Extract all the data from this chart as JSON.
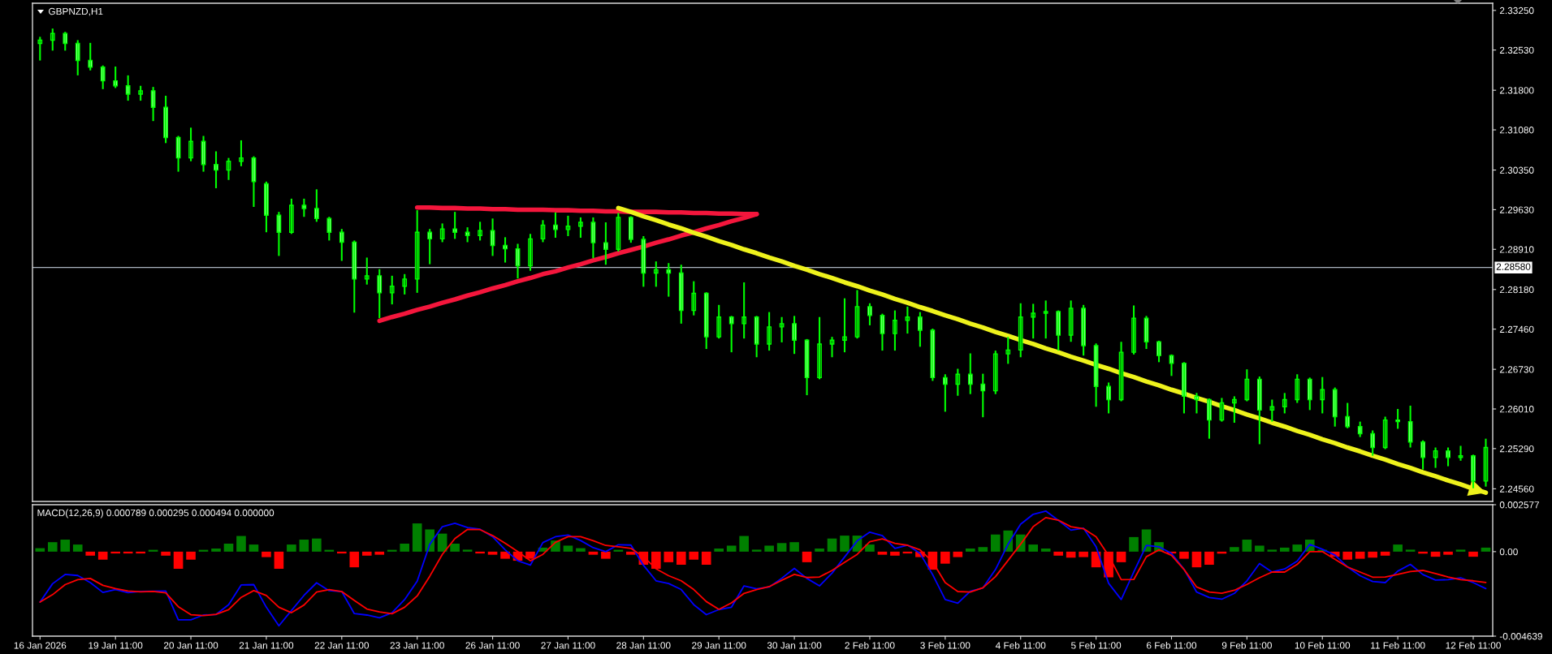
{
  "chart_data": [
    {
      "type": "candlestick",
      "title": "GBPNZD,H1",
      "color": "#00ff00",
      "ohlc": [
        [
          2.3265,
          2.3277,
          2.3234,
          2.3271
        ],
        [
          2.3271,
          2.3292,
          2.3252,
          2.3283
        ],
        [
          2.3283,
          2.3286,
          2.3252,
          2.3265
        ],
        [
          2.3265,
          2.3271,
          2.3207,
          2.3234
        ],
        [
          2.3234,
          2.3266,
          2.3216,
          2.3222
        ],
        [
          2.3222,
          2.3225,
          2.3182,
          2.3197
        ],
        [
          2.3197,
          2.3223,
          2.3184,
          2.3188
        ],
        [
          2.3188,
          2.3207,
          2.3161,
          2.3173
        ],
        [
          2.3173,
          2.3188,
          2.3161,
          2.3179
        ],
        [
          2.3179,
          2.3186,
          2.3124,
          2.3149
        ],
        [
          2.3149,
          2.317,
          2.3084,
          2.3094
        ],
        [
          2.3094,
          2.3097,
          2.3032,
          2.3057
        ],
        [
          2.3057,
          2.3112,
          2.3051,
          2.3087
        ],
        [
          2.3087,
          2.3097,
          2.3032,
          2.3045
        ],
        [
          2.3045,
          2.3069,
          2.3002,
          2.3035
        ],
        [
          2.3035,
          2.3057,
          2.3017,
          2.3051
        ],
        [
          2.3051,
          2.3089,
          2.3042,
          2.3057
        ],
        [
          2.3057,
          2.306,
          2.2968,
          2.3014
        ],
        [
          2.301,
          2.3014,
          2.2922,
          2.2953
        ],
        [
          2.2953,
          2.2959,
          2.2879,
          2.2922
        ],
        [
          2.2922,
          2.2983,
          2.2919,
          2.2971
        ],
        [
          2.2971,
          2.2983,
          2.295,
          2.2965
        ],
        [
          2.2965,
          2.3,
          2.2941,
          2.2947
        ],
        [
          2.2947,
          2.295,
          2.2907,
          2.2922
        ],
        [
          2.2922,
          2.2928,
          2.287,
          2.2904
        ],
        [
          2.2904,
          2.2907,
          2.2776,
          2.2837
        ],
        [
          2.2837,
          2.2876,
          2.2827,
          2.2843
        ],
        [
          2.2843,
          2.2855,
          2.2766,
          2.2812
        ],
        [
          2.2812,
          2.2843,
          2.2791,
          2.2824
        ],
        [
          2.2824,
          2.2846,
          2.2809,
          2.2837
        ],
        [
          2.2837,
          2.2962,
          2.2812,
          2.2922
        ],
        [
          2.2922,
          2.2928,
          2.2864,
          2.291
        ],
        [
          2.291,
          2.2938,
          2.2904,
          2.2928
        ],
        [
          2.2928,
          2.2959,
          2.291,
          2.2922
        ],
        [
          2.2922,
          2.2931,
          2.2904,
          2.2916
        ],
        [
          2.2916,
          2.2941,
          2.2907,
          2.2925
        ],
        [
          2.2925,
          2.2947,
          2.2879,
          2.2898
        ],
        [
          2.2898,
          2.2913,
          2.2867,
          2.2892
        ],
        [
          2.2892,
          2.2901,
          2.2838,
          2.2861
        ],
        [
          2.2861,
          2.2919,
          2.2852,
          2.291
        ],
        [
          2.291,
          2.2944,
          2.2904,
          2.2935
        ],
        [
          2.2935,
          2.2958,
          2.2912,
          2.2927
        ],
        [
          2.2927,
          2.2952,
          2.2915,
          2.2933
        ],
        [
          2.2933,
          2.2949,
          2.2912,
          2.294
        ],
        [
          2.294,
          2.2949,
          2.2875,
          2.2903
        ],
        [
          2.2903,
          2.294,
          2.2863,
          2.2891
        ],
        [
          2.2891,
          2.2957,
          2.2887,
          2.2949
        ],
        [
          2.2949,
          2.2951,
          2.2903,
          2.2909
        ],
        [
          2.2909,
          2.2915,
          2.2823,
          2.2848
        ],
        [
          2.2848,
          2.2869,
          2.2823,
          2.2854
        ],
        [
          2.2854,
          2.2866,
          2.2805,
          2.2848
        ],
        [
          2.2848,
          2.2863,
          2.2756,
          2.278
        ],
        [
          2.278,
          2.2833,
          2.2771,
          2.2811
        ],
        [
          2.2811,
          2.2813,
          2.271,
          2.2732
        ],
        [
          2.2732,
          2.279,
          2.2729,
          2.2768
        ],
        [
          2.2768,
          2.277,
          2.2704,
          2.2756
        ],
        [
          2.2756,
          2.2831,
          2.2729,
          2.2768
        ],
        [
          2.2768,
          2.277,
          2.2695,
          2.2719
        ],
        [
          2.2719,
          2.2777,
          2.2707,
          2.275
        ],
        [
          2.275,
          2.2768,
          2.2722,
          2.2756
        ],
        [
          2.2756,
          2.277,
          2.2701,
          2.2726
        ],
        [
          2.2726,
          2.2728,
          2.2626,
          2.2658
        ],
        [
          2.2658,
          2.2768,
          2.2655,
          2.2719
        ],
        [
          2.2719,
          2.2732,
          2.2695,
          2.2726
        ],
        [
          2.2726,
          2.2802,
          2.2704,
          2.2732
        ],
        [
          2.2732,
          2.2817,
          2.2729,
          2.2787
        ],
        [
          2.2787,
          2.2793,
          2.2753,
          2.2771
        ],
        [
          2.2771,
          2.2774,
          2.2707,
          2.2738
        ],
        [
          2.2738,
          2.278,
          2.2707,
          2.2762
        ],
        [
          2.2762,
          2.2787,
          2.2738,
          2.2768
        ],
        [
          2.2768,
          2.2777,
          2.2714,
          2.2744
        ],
        [
          2.2744,
          2.2747,
          2.2652,
          2.2658
        ],
        [
          2.2658,
          2.2664,
          2.2596,
          2.2646
        ],
        [
          2.2646,
          2.2674,
          2.2625,
          2.2664
        ],
        [
          2.2664,
          2.2702,
          2.2628,
          2.2646
        ],
        [
          2.2646,
          2.2665,
          2.2586,
          2.2634
        ],
        [
          2.2634,
          2.2707,
          2.2628,
          2.2701
        ],
        [
          2.2701,
          2.2732,
          2.2683,
          2.2708
        ],
        [
          2.2708,
          2.2793,
          2.2695,
          2.2768
        ],
        [
          2.2768,
          2.2792,
          2.2729,
          2.2775
        ],
        [
          2.2775,
          2.2798,
          2.2729,
          2.2778
        ],
        [
          2.2778,
          2.278,
          2.2707,
          2.2735
        ],
        [
          2.2735,
          2.2798,
          2.2723,
          2.2784
        ],
        [
          2.2784,
          2.279,
          2.2698,
          2.2716
        ],
        [
          2.2716,
          2.272,
          2.2605,
          2.2642
        ],
        [
          2.2642,
          2.2649,
          2.2593,
          2.2618
        ],
        [
          2.2618,
          2.2723,
          2.2615,
          2.2704
        ],
        [
          2.2704,
          2.2789,
          2.27,
          2.2766
        ],
        [
          2.2766,
          2.277,
          2.271,
          2.2723
        ],
        [
          2.2723,
          2.2725,
          2.2686,
          2.2698
        ],
        [
          2.2698,
          2.27,
          2.2661,
          2.2684
        ],
        [
          2.2684,
          2.2686,
          2.2593,
          2.2624
        ],
        [
          2.2624,
          2.263,
          2.2593,
          2.2618
        ],
        [
          2.2618,
          2.262,
          2.2547,
          2.2581
        ],
        [
          2.2581,
          2.2621,
          2.2578,
          2.2612
        ],
        [
          2.2612,
          2.2624,
          2.2576,
          2.2618
        ],
        [
          2.2618,
          2.2673,
          2.2615,
          2.2655
        ],
        [
          2.2655,
          2.266,
          2.2537,
          2.2599
        ],
        [
          2.2599,
          2.2618,
          2.2578,
          2.2605
        ],
        [
          2.2605,
          2.263,
          2.2593,
          2.2618
        ],
        [
          2.2618,
          2.2664,
          2.2612,
          2.2655
        ],
        [
          2.2655,
          2.2658,
          2.2599,
          2.2618
        ],
        [
          2.2618,
          2.2659,
          2.2593,
          2.2636
        ],
        [
          2.2636,
          2.264,
          2.2569,
          2.2587
        ],
        [
          2.2587,
          2.2612,
          2.2566,
          2.2569
        ],
        [
          2.2569,
          2.2578,
          2.255,
          2.2556
        ],
        [
          2.2556,
          2.2562,
          2.2516,
          2.2531
        ],
        [
          2.2531,
          2.2587,
          2.2528,
          2.2581
        ],
        [
          2.2581,
          2.2601,
          2.2565,
          2.2578
        ],
        [
          2.2578,
          2.2607,
          2.2531,
          2.2541
        ],
        [
          2.2541,
          2.2544,
          2.2491,
          2.2513
        ],
        [
          2.2513,
          2.2531,
          2.2494,
          2.2525
        ],
        [
          2.2525,
          2.2531,
          2.2497,
          2.2513
        ],
        [
          2.2513,
          2.2534,
          2.2507,
          2.2516
        ],
        [
          2.2516,
          2.2518,
          2.2457,
          2.247
        ],
        [
          2.247,
          2.2547,
          2.246,
          2.2531
        ]
      ],
      "series": [
        {
          "type": "line",
          "color": "#f4163c",
          "values": [
            null,
            null,
            null,
            null,
            null,
            null,
            null,
            null,
            null,
            null,
            null,
            null,
            null,
            null,
            null,
            null,
            null,
            null,
            null,
            null,
            null,
            null,
            null,
            null,
            null,
            null,
            null,
            null,
            null,
            null,
            2.2967,
            2.2967,
            2.2966,
            2.2966,
            2.2965,
            2.2965,
            2.2964,
            2.2964,
            2.2963,
            2.2963,
            2.2963,
            2.2962,
            2.2962,
            2.2961,
            2.2961,
            2.296,
            2.296,
            2.2959,
            2.2959,
            2.2959,
            2.2958,
            2.2958,
            2.2957,
            2.2957,
            2.2956,
            2.2956,
            2.2955,
            2.2955,
            null,
            null,
            null,
            null,
            null,
            null,
            null,
            null,
            null,
            null,
            null,
            null,
            null,
            null,
            null,
            null,
            null,
            null,
            null,
            null,
            null,
            null,
            null,
            null,
            null,
            null,
            null,
            null,
            null,
            null,
            null,
            null,
            null,
            null,
            null,
            null,
            null,
            null,
            null,
            null,
            null,
            null,
            null,
            null,
            null,
            null,
            null,
            null,
            null,
            null,
            null,
            null,
            null,
            null,
            null,
            null,
            null,
            null
          ]
        },
        {
          "type": "line",
          "color": "#f4163c",
          "values": [
            null,
            null,
            null,
            null,
            null,
            null,
            null,
            null,
            null,
            null,
            null,
            null,
            null,
            null,
            null,
            null,
            null,
            null,
            null,
            null,
            null,
            null,
            null,
            null,
            null,
            null,
            null,
            2.2761,
            2.2768,
            2.2774,
            2.2781,
            2.2787,
            2.2794,
            2.28,
            2.2807,
            2.2813,
            2.282,
            2.2826,
            2.2833,
            2.2839,
            2.2846,
            2.2851,
            2.2858,
            2.2864,
            2.2871,
            2.2877,
            2.2884,
            2.289,
            2.2896,
            2.2903,
            2.2909,
            2.2916,
            2.2922,
            2.2929,
            2.2935,
            2.2942,
            2.2948,
            2.2955,
            null,
            null,
            null,
            null,
            null,
            null,
            null,
            null,
            null,
            null,
            null,
            null,
            null,
            null,
            null,
            null,
            null,
            null,
            null,
            null,
            null,
            null,
            null,
            null,
            null,
            null,
            null,
            null,
            null,
            null,
            null,
            null,
            null,
            null,
            null,
            null,
            null,
            null,
            null,
            null,
            null,
            null,
            null,
            null,
            null,
            null,
            null,
            null,
            null,
            null,
            null,
            null,
            null,
            null,
            null,
            null,
            null,
            null
          ]
        },
        {
          "type": "line",
          "color": "#eef21c",
          "values": [
            null,
            null,
            null,
            null,
            null,
            null,
            null,
            null,
            null,
            null,
            null,
            null,
            null,
            null,
            null,
            null,
            null,
            null,
            null,
            null,
            null,
            null,
            null,
            null,
            null,
            null,
            null,
            null,
            null,
            null,
            null,
            null,
            null,
            null,
            null,
            null,
            null,
            null,
            null,
            null,
            null,
            null,
            null,
            null,
            null,
            null,
            2.2966,
            2.2959,
            2.2951,
            2.2944,
            2.2936,
            2.2929,
            2.2921,
            2.2914,
            2.2906,
            2.2899,
            2.2891,
            2.2884,
            2.2876,
            2.2869,
            2.2861,
            2.2854,
            2.2846,
            2.2839,
            2.2831,
            2.2824,
            2.2816,
            2.2809,
            2.2801,
            2.2794,
            2.2786,
            2.2779,
            2.2771,
            2.2764,
            2.2756,
            2.2749,
            2.2741,
            2.2734,
            2.2726,
            2.2719,
            2.2711,
            2.2704,
            2.2696,
            2.2689,
            2.2681,
            2.2674,
            2.2666,
            2.2659,
            2.2651,
            2.2644,
            2.2636,
            2.2629,
            2.2621,
            2.2614,
            2.2606,
            2.2599,
            2.2591,
            2.2584,
            2.2576,
            2.2569,
            2.2561,
            2.2554,
            2.2546,
            2.2539,
            2.2531,
            2.2524,
            2.2516,
            2.2509,
            2.2501,
            2.2494,
            2.2486,
            2.2479,
            2.2471,
            2.2464,
            2.2456,
            2.2449
          ]
        }
      ],
      "ref_lines": [
        {
          "axis": "y",
          "value": 2.2858,
          "label": "2.28580",
          "color": "#aab4c0"
        }
      ],
      "ylim": [
        2.2433,
        2.3338
      ],
      "yticks": [
        {
          "value": 2.3325,
          "label": "2.33250"
        },
        {
          "value": 2.3253,
          "label": "2.32530"
        },
        {
          "value": 2.318,
          "label": "2.31800"
        },
        {
          "value": 2.3108,
          "label": "2.31080"
        },
        {
          "value": 2.3035,
          "label": "2.30350"
        },
        {
          "value": 2.2963,
          "label": "2.29630"
        },
        {
          "value": 2.2891,
          "label": "2.28910"
        },
        {
          "value": 2.2818,
          "label": "2.28180"
        },
        {
          "value": 2.2746,
          "label": "2.27460"
        },
        {
          "value": 2.2673,
          "label": "2.26730"
        },
        {
          "value": 2.2601,
          "label": "2.26010"
        },
        {
          "value": 2.2529,
          "label": "2.25290"
        },
        {
          "value": 2.2456,
          "label": "2.24560"
        }
      ]
    },
    {
      "type": "bar",
      "title": "MACD(12,26,9) 0.000789 0.000295 0.000494 0.000000",
      "categories": [
        "16 Jan 2026",
        null,
        null,
        null,
        null,
        null,
        "19 Jan 11:00",
        null,
        null,
        null,
        null,
        null,
        "20 Jan 11:00",
        null,
        null,
        null,
        null,
        null,
        "21 Jan 11:00",
        null,
        null,
        null,
        null,
        null,
        "22 Jan 11:00",
        null,
        null,
        null,
        null,
        null,
        "23 Jan 11:00",
        null,
        null,
        null,
        null,
        null,
        "26 Jan 11:00",
        null,
        null,
        null,
        null,
        null,
        "27 Jan 11:00",
        null,
        null,
        null,
        null,
        null,
        "28 Jan 11:00",
        null,
        null,
        null,
        null,
        null,
        "29 Jan 11:00",
        null,
        null,
        null,
        null,
        null,
        "30 Jan 11:00",
        null,
        null,
        null,
        null,
        null,
        "2 Feb 11:00",
        null,
        null,
        null,
        null,
        null,
        "3 Feb 11:00",
        null,
        null,
        null,
        null,
        null,
        "4 Feb 11:00",
        null,
        null,
        null,
        null,
        null,
        "5 Feb 11:00",
        null,
        null,
        null,
        null,
        null,
        "6 Feb 11:00",
        null,
        null,
        null,
        null,
        null,
        "9 Feb 11:00",
        null,
        null,
        null,
        null,
        null,
        "10 Feb 11:00",
        null,
        null,
        null,
        null,
        null,
        "11 Feb 11:00",
        null,
        null,
        null,
        null,
        null,
        "12 Feb 11:00",
        null
      ],
      "series": [
        {
          "type": "bar",
          "values": [
            0.00019,
            0.00052,
            0.00066,
            0.00039,
            -0.00022,
            -0.00044,
            -0.0001,
            -0.0001,
            -0.0001,
            0.0001,
            -0.00022,
            -0.00094,
            -0.00044,
            0.0001,
            0.00017,
            0.00044,
            0.00086,
            0.00039,
            -0.0003,
            -0.00094,
            0.00039,
            0.00066,
            0.00072,
            0.0001,
            -0.0001,
            -0.00086,
            -0.00022,
            -0.00017,
            0.0001,
            0.00044,
            0.00155,
            0.00122,
            0.00099,
            0.00044,
            0.00011,
            -0.0001,
            -0.00017,
            -0.00039,
            -0.0005,
            -0.00039,
            0.00022,
            0.00061,
            0.00033,
            0.00019,
            -0.00017,
            -0.00039,
            0.0001,
            -0.00017,
            -0.00072,
            -0.00094,
            -0.00058,
            -0.00072,
            -0.00044,
            -0.00072,
            0.00017,
            0.00033,
            0.00086,
            0.00011,
            0.00033,
            0.00047,
            0.00052,
            -0.00058,
            0.00017,
            0.00072,
            0.00088,
            0.00088,
            0.00039,
            -0.00017,
            -0.00022,
            -0.0001,
            -0.0003,
            -0.00099,
            -0.00066,
            -0.0003,
            0.00017,
            0.00025,
            0.00094,
            0.00116,
            0.00094,
            0.00039,
            0.00017,
            -0.00022,
            -0.00033,
            -0.0003,
            -0.00086,
            -0.00141,
            -0.00058,
            0.0008,
            0.00122,
            0.00052,
            -0.0001,
            -0.00039,
            -0.00086,
            -0.00072,
            -0.00011,
            0.00025,
            0.00066,
            0.00033,
            0.00011,
            0.00022,
            0.00039,
            0.00066,
            0.0001,
            -0.00028,
            -0.00044,
            -0.00039,
            -0.00033,
            -0.00022,
            0.00039,
            0.00011,
            -0.00011,
            -0.00028,
            -0.00017,
            0.00011,
            -0.00028,
            0.00022
          ],
          "colors": [
            "#008000",
            "#008000",
            "#008000",
            "#008000",
            "#ff0000",
            "#ff0000",
            "#ff0000",
            "#ff0000",
            "#ff0000",
            "#008000",
            "#ff0000",
            "#ff0000",
            "#ff0000",
            "#008000",
            "#008000",
            "#008000",
            "#008000",
            "#008000",
            "#ff0000",
            "#ff0000",
            "#008000",
            "#008000",
            "#008000",
            "#008000",
            "#ff0000",
            "#ff0000",
            "#ff0000",
            "#ff0000",
            "#008000",
            "#008000",
            "#008000",
            "#008000",
            "#008000",
            "#008000",
            "#008000",
            "#ff0000",
            "#ff0000",
            "#ff0000",
            "#ff0000",
            "#ff0000",
            "#008000",
            "#008000",
            "#008000",
            "#008000",
            "#ff0000",
            "#ff0000",
            "#008000",
            "#ff0000",
            "#ff0000",
            "#ff0000",
            "#ff0000",
            "#ff0000",
            "#ff0000",
            "#ff0000",
            "#008000",
            "#008000",
            "#008000",
            "#008000",
            "#008000",
            "#008000",
            "#008000",
            "#ff0000",
            "#008000",
            "#008000",
            "#008000",
            "#008000",
            "#008000",
            "#ff0000",
            "#ff0000",
            "#ff0000",
            "#ff0000",
            "#ff0000",
            "#ff0000",
            "#ff0000",
            "#008000",
            "#008000",
            "#008000",
            "#008000",
            "#008000",
            "#008000",
            "#008000",
            "#ff0000",
            "#ff0000",
            "#ff0000",
            "#ff0000",
            "#ff0000",
            "#ff0000",
            "#008000",
            "#008000",
            "#008000",
            "#ff0000",
            "#ff0000",
            "#ff0000",
            "#ff0000",
            "#ff0000",
            "#008000",
            "#008000",
            "#008000",
            "#008000",
            "#008000",
            "#008000",
            "#008000",
            "#008000",
            "#ff0000",
            "#ff0000",
            "#ff0000",
            "#ff0000",
            "#ff0000",
            "#008000",
            "#008000",
            "#ff0000",
            "#ff0000",
            "#ff0000",
            "#008000",
            "#ff0000",
            "#008000"
          ]
        },
        {
          "type": "line",
          "color": "#0000ff",
          "values": [
            -0.00277,
            -0.00176,
            -0.00125,
            -0.00131,
            -0.0017,
            -0.00224,
            -0.00208,
            -0.00225,
            -0.00218,
            -0.00217,
            -0.00216,
            -0.00374,
            -0.00374,
            -0.00348,
            -0.00345,
            -0.00291,
            -0.00183,
            -0.00181,
            -0.00305,
            -0.00407,
            -0.00323,
            -0.0024,
            -0.00171,
            -0.00214,
            -0.00219,
            -0.0034,
            -0.00348,
            -0.00363,
            -0.00335,
            -0.00263,
            -0.00162,
            0.0004,
            0.00137,
            0.00156,
            0.00132,
            0.00123,
            0.00082,
            0.0001,
            -0.0005,
            -0.00074,
            0.0005,
            0.00082,
            0.00091,
            0.00061,
            0.00022,
            0,
            0.00038,
            0.00036,
            -0.00075,
            -0.0016,
            -0.00175,
            -0.00208,
            -0.00291,
            -0.00346,
            -0.00318,
            -0.00305,
            -0.00188,
            -0.00204,
            -0.00194,
            -0.00146,
            -0.00092,
            -0.00147,
            -0.00188,
            -0.00118,
            -0.00029,
            0.00059,
            0.00107,
            0.00088,
            0.00018,
            0.00036,
            -0.0001,
            -0.00126,
            -0.00263,
            -0.00283,
            -0.00217,
            -0.00199,
            -0.00098,
            0.00041,
            0.00151,
            0.00205,
            0.00223,
            0.00172,
            0.00118,
            0.00129,
            0.00027,
            -0.00174,
            -0.00263,
            -0.00112,
            0.00034,
            0.00027,
            -0.0001,
            -0.00097,
            -0.00222,
            -0.00252,
            -0.00261,
            -0.00229,
            -0.0016,
            -0.00065,
            -0.00112,
            -0.00095,
            -0.00052,
            0.0004,
            0.00013,
            -0.00019,
            -0.00084,
            -0.00132,
            -0.00164,
            -0.0017,
            -0.00107,
            -0.0007,
            -0.00126,
            -0.00156,
            -0.00154,
            -0.00144,
            -0.0017,
            -0.00203
          ]
        },
        {
          "type": "line",
          "color": "#ff0000",
          "values": [
            -0.00277,
            -0.00236,
            -0.00181,
            -0.00154,
            -0.00147,
            -0.00185,
            -0.00203,
            -0.00216,
            -0.00221,
            -0.00218,
            -0.00226,
            -0.00302,
            -0.00346,
            -0.00351,
            -0.00344,
            -0.00319,
            -0.00251,
            -0.00214,
            -0.00241,
            -0.00305,
            -0.00335,
            -0.00293,
            -0.00222,
            -0.00208,
            -0.00219,
            -0.00268,
            -0.00315,
            -0.00331,
            -0.00341,
            -0.00305,
            -0.00243,
            -0.00135,
            -0.00015,
            0.00072,
            0.00122,
            0.00121,
            0.00088,
            0.00046,
            0,
            -0.0005,
            -0.00015,
            0.00051,
            0.00082,
            0.00082,
            0.0006,
            0.00034,
            0.00027,
            0.00018,
            -0.00028,
            -0.00094,
            -0.00132,
            -0.0016,
            -0.00208,
            -0.00274,
            -0.00317,
            -0.00281,
            -0.00229,
            -0.00208,
            -0.00192,
            -0.00157,
            -0.00125,
            -0.00142,
            -0.00139,
            -0.00103,
            -0.00059,
            -0.00015,
            0.00054,
            0.0007,
            0.00046,
            0.00035,
            0.0001,
            -0.00056,
            -0.0017,
            -0.00219,
            -0.00222,
            -0.00198,
            -0.00137,
            -0.00048,
            0.00041,
            0.00137,
            0.00187,
            0.00173,
            0.00137,
            0.00126,
            0.00082,
            -0.00022,
            -0.00154,
            -0.00153,
            -0.00028,
            0.0001,
            -0.0002,
            -0.00098,
            -0.00194,
            -0.00222,
            -0.00228,
            -0.00212,
            -0.0018,
            -0.00143,
            -0.00112,
            -0.00112,
            -0.0007,
            0,
            0,
            -0.00042,
            -0.00084,
            -0.00112,
            -0.0014,
            -0.00139,
            -0.00125,
            -0.00109,
            -0.00103,
            -0.0012,
            -0.00139,
            -0.00154,
            -0.0016,
            -0.00169
          ]
        }
      ],
      "ylim": [
        -0.004639,
        0.002577
      ],
      "yticks": [
        {
          "value": 0.002577,
          "label": "0.002577"
        },
        {
          "value": 0,
          "label": "0.00"
        },
        {
          "value": -0.004639,
          "label": "-0.004639"
        }
      ]
    }
  ]
}
